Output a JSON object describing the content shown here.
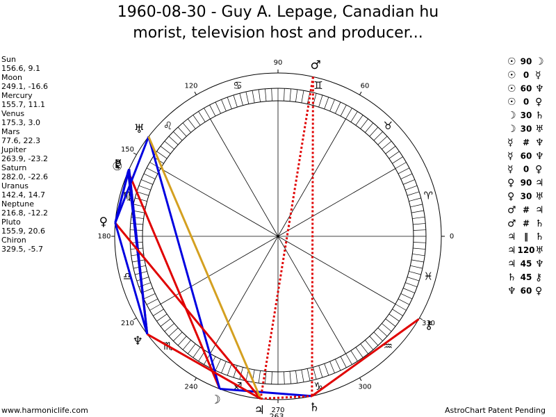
{
  "title_lines": [
    "1960-08-30 - Guy A. Lepage, Canadian hu",
    "morist, television host and producer..."
  ],
  "planets": [
    {
      "name": "Sun",
      "position": "156.6, 9.1",
      "glyph": "☉"
    },
    {
      "name": "Moon",
      "position": "249.1, -16.6",
      "glyph": "☽"
    },
    {
      "name": "Mercury",
      "position": "155.7, 11.1",
      "glyph": "☿"
    },
    {
      "name": "Venus",
      "position": "175.3, 3.0",
      "glyph": "♀"
    },
    {
      "name": "Mars",
      "position": "77.6, 22.3",
      "glyph": "♂"
    },
    {
      "name": "Jupiter",
      "position": "263.9, -23.2",
      "glyph": "♃"
    },
    {
      "name": "Saturn",
      "position": "282.0, -22.6",
      "glyph": "♄"
    },
    {
      "name": "Uranus",
      "position": "142.4, 14.7",
      "glyph": "♅"
    },
    {
      "name": "Neptune",
      "position": "216.8, -12.2",
      "glyph": "♆"
    },
    {
      "name": "Pluto",
      "position": "155.9, 20.6",
      "glyph": "♇"
    },
    {
      "name": "Chiron",
      "position": "329.5, -5.7",
      "glyph": "⚷"
    }
  ],
  "aspects": [
    {
      "a": "☉",
      "kind": "90",
      "b": "☽",
      "color": "#e00000",
      "dashed": false
    },
    {
      "a": "☉",
      "kind": "0",
      "b": "☿",
      "color": "#0000e0",
      "dashed": false
    },
    {
      "a": "☉",
      "kind": "60",
      "b": "♆",
      "color": "#0000e0",
      "dashed": false
    },
    {
      "a": "☉",
      "kind": "0",
      "b": "♀",
      "color": "#0000e0",
      "dashed": false
    },
    {
      "a": "☽",
      "kind": "30",
      "b": "♄",
      "color": "#0000e0",
      "dashed": false
    },
    {
      "a": "☽",
      "kind": "30",
      "b": "♅",
      "color": "#0000e0",
      "dashed": false
    },
    {
      "a": "☿",
      "kind": "#",
      "b": "♆",
      "color": "#e00000",
      "dashed": true
    },
    {
      "a": "☿",
      "kind": "60",
      "b": "♆",
      "color": "#0000e0",
      "dashed": false
    },
    {
      "a": "☿",
      "kind": "0",
      "b": "♀",
      "color": "#0000e0",
      "dashed": false
    },
    {
      "a": "♀",
      "kind": "90",
      "b": "♃",
      "color": "#e00000",
      "dashed": false
    },
    {
      "a": "♀",
      "kind": "30",
      "b": "♅",
      "color": "#0000e0",
      "dashed": false
    },
    {
      "a": "♂",
      "kind": "#",
      "b": "♃",
      "color": "#e00000",
      "dashed": true
    },
    {
      "a": "♂",
      "kind": "#",
      "b": "♄",
      "color": "#e00000",
      "dashed": true
    },
    {
      "a": "♃",
      "kind": "‖",
      "b": "♄",
      "color": "#e00000",
      "dashed": true
    },
    {
      "a": "♃",
      "kind": "120",
      "b": "♅",
      "color": "#d4a020",
      "dashed": false
    },
    {
      "a": "♃",
      "kind": "45",
      "b": "♆",
      "color": "#e00000",
      "dashed": false
    },
    {
      "a": "♄",
      "kind": "45",
      "b": "⚷",
      "color": "#e00000",
      "dashed": false
    },
    {
      "a": "♆",
      "kind": "60",
      "b": "♀",
      "color": "#0000e0",
      "dashed": false
    }
  ],
  "wheel": {
    "degree_labels": [
      0,
      60,
      90,
      120,
      150,
      180,
      210,
      240,
      270,
      300,
      330
    ],
    "ascendant": 263,
    "signs": [
      "♈",
      "♉",
      "♊",
      "♋",
      "♌",
      "♍",
      "♎",
      "♏",
      "♐",
      "♑",
      "♒",
      "♓"
    ]
  },
  "footer": {
    "left": "www.harmoniclife.com",
    "right": "AstroChart Patent Pending"
  }
}
